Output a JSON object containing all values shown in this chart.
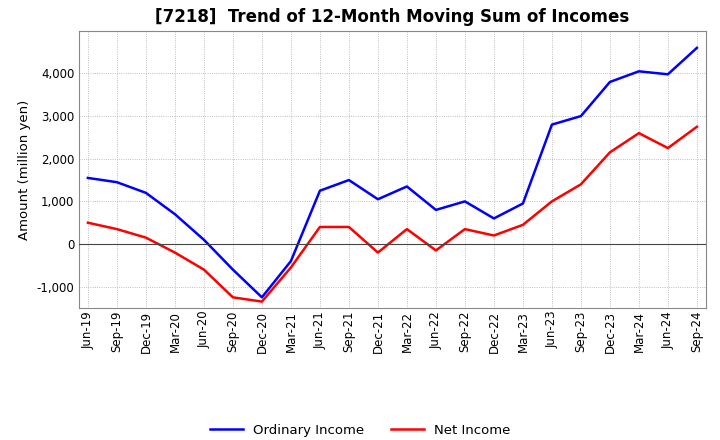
{
  "title": "[7218]  Trend of 12-Month Moving Sum of Incomes",
  "ylabel": "Amount (million yen)",
  "background_color": "#ffffff",
  "plot_bg_color": "#ffffff",
  "grid_color": "#aaaaaa",
  "ordinary_income_color": "#0000ff",
  "net_income_color": "#ff0000",
  "x_labels": [
    "Jun-19",
    "Sep-19",
    "Dec-19",
    "Mar-20",
    "Jun-20",
    "Sep-20",
    "Dec-20",
    "Mar-21",
    "Jun-21",
    "Sep-21",
    "Dec-21",
    "Mar-22",
    "Jun-22",
    "Sep-22",
    "Dec-22",
    "Mar-23",
    "Jun-23",
    "Sep-23",
    "Dec-23",
    "Mar-24",
    "Jun-24",
    "Sep-24"
  ],
  "ordinary_income": [
    1550,
    1450,
    1200,
    700,
    100,
    -600,
    -1250,
    -400,
    1250,
    1500,
    1050,
    1350,
    800,
    1000,
    600,
    950,
    2800,
    3000,
    3800,
    4050,
    3980,
    4600
  ],
  "net_income": [
    500,
    350,
    150,
    -200,
    -600,
    -1250,
    -1350,
    -550,
    400,
    400,
    -200,
    350,
    -150,
    350,
    200,
    450,
    1000,
    1400,
    2150,
    2600,
    2250,
    2750
  ],
  "ylim": [
    -1500,
    5000
  ],
  "yticks": [
    -1000,
    0,
    1000,
    2000,
    3000,
    4000
  ],
  "title_fontsize": 12,
  "tick_fontsize": 8.5,
  "label_fontsize": 9.5
}
